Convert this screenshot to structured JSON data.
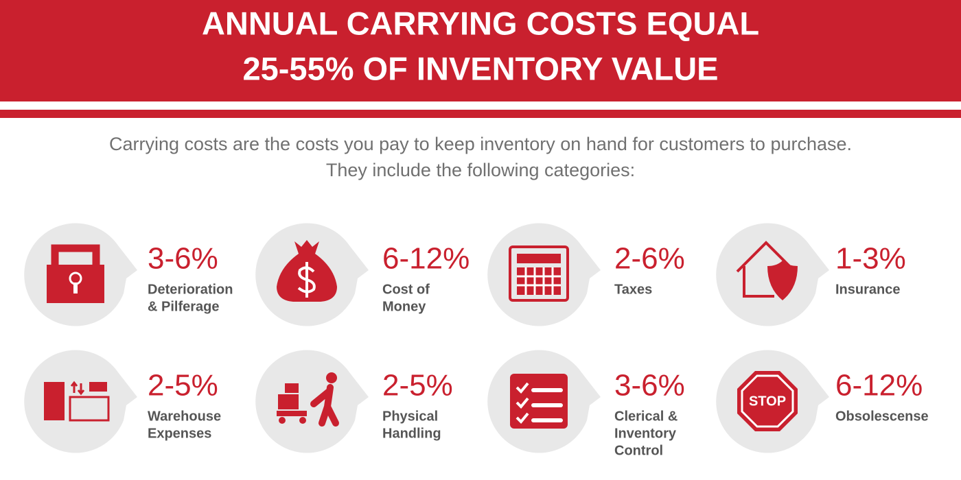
{
  "header": {
    "title_lines": [
      "ANNUAL CARRYING COSTS EQUAL",
      "25-55% OF INVENTORY VALUE"
    ]
  },
  "intro_lines": [
    "Carrying costs are the costs you pay to keep inventory on hand for customers to purchase.",
    "They include the following categories:"
  ],
  "items": [
    {
      "range": "3-6%",
      "label_lines": [
        "Deterioration",
        "& Pilferage"
      ]
    },
    {
      "range": "6-12%",
      "label_lines": [
        "Cost of",
        "Money"
      ]
    },
    {
      "range": "2-6%",
      "label_lines": [
        "Taxes"
      ]
    },
    {
      "range": "1-3%",
      "label_lines": [
        "Insurance"
      ]
    },
    {
      "range": "2-5%",
      "label_lines": [
        "Warehouse",
        "Expenses"
      ]
    },
    {
      "range": "2-5%",
      "label_lines": [
        "Physical",
        "Handling"
      ]
    },
    {
      "range": "3-6%",
      "label_lines": [
        "Clerical &",
        "Inventory",
        "Control"
      ]
    },
    {
      "range": "6-12%",
      "label_lines": [
        "Obsolescense"
      ]
    }
  ],
  "icons": {
    "stop_sign": "STOP"
  }
}
